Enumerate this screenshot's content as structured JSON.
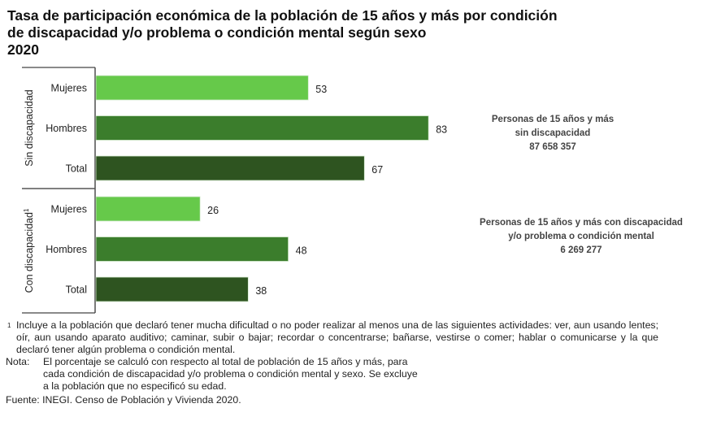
{
  "title": {
    "lines": [
      "Tasa de participación económica de la población de 15 años y más por condición",
      "de discapacidad y/o problema o condición mental según sexo",
      "2020"
    ]
  },
  "chart_data": {
    "type": "bar",
    "orientation": "horizontal",
    "title": "Tasa de participación económica de la población de 15 años y más por condición de discapacidad y/o problema o condición mental según sexo 2020",
    "xlabel": "",
    "ylabel": "",
    "xlim": [
      0,
      100
    ],
    "grid": false,
    "legend": "none",
    "groups": [
      {
        "name": "Sin discapacidad",
        "superscript": "",
        "categories": [
          "Mujeres",
          "Hombres",
          "Total"
        ],
        "values": [
          53,
          83,
          67
        ]
      },
      {
        "name": "Con discapacidad",
        "superscript": "1",
        "categories": [
          "Mujeres",
          "Hombres",
          "Total"
        ],
        "values": [
          26,
          48,
          38
        ]
      }
    ],
    "colors": {
      "Mujeres": "#66c94a",
      "Hombres": "#3b7d2c",
      "Total": "#2e5420"
    },
    "annotations": [
      {
        "group": "Sin discapacidad",
        "lines": [
          "Personas de 15 años y más",
          "sin discapacidad",
          "87 658 357"
        ]
      },
      {
        "group": "Con discapacidad",
        "lines": [
          "Personas de 15 años y más con discapacidad",
          "y/o problema o condición mental",
          "6 269 277"
        ]
      }
    ]
  },
  "footnotes": {
    "note1_marker": "1",
    "note1": "Incluye a la población que declaró tener mucha dificultad o no poder realizar al menos una de las siguientes actividades: ver, aun usando lentes; oír, aun usando aparato auditivo; caminar, subir o bajar; recordar o concentrarse; bañarse, vestirse o comer; hablar o comunicarse y la que declaró tener algún problema o condición mental.",
    "nota_label": "Nota:",
    "nota": "El porcentaje se calculó con respecto al total de población de 15 años y más, para cada condición de discapacidad y/o problema o condición mental y sexo. Se excluye a la población que no especificó su edad.",
    "fuente": "Fuente: INEGI. Censo de Población y Vivienda 2020."
  }
}
